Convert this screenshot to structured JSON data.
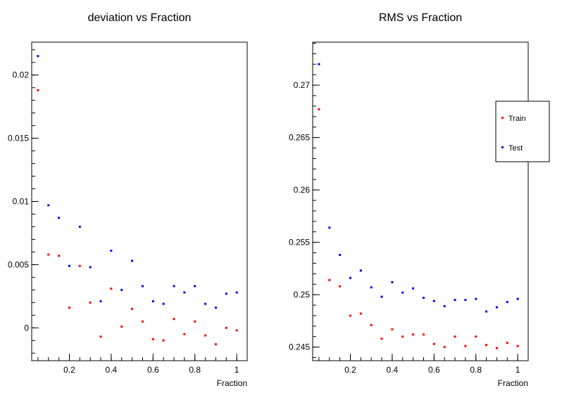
{
  "chart_data": [
    {
      "type": "scatter",
      "title": "deviation vs Fraction",
      "xlabel": "Fraction",
      "ylabel": "",
      "xlim": [
        0.02,
        1.05
      ],
      "ylim": [
        -0.0026,
        0.0226
      ],
      "xticks": [
        0.2,
        0.4,
        0.6,
        0.8,
        1
      ],
      "xtick_labels": [
        "0.2",
        "0.4",
        "0.6",
        "0.8",
        "1"
      ],
      "yticks": [
        0,
        0.005,
        0.01,
        0.015,
        0.02
      ],
      "ytick_labels": [
        "0",
        "0.005",
        "0.01",
        "0.015",
        "0.02"
      ],
      "grid": false,
      "legend": null,
      "x": [
        0.05,
        0.1,
        0.15,
        0.2,
        0.25,
        0.3,
        0.35,
        0.4,
        0.45,
        0.5,
        0.55,
        0.6,
        0.65,
        0.7,
        0.75,
        0.8,
        0.85,
        0.9,
        0.95,
        1.0
      ],
      "series": [
        {
          "name": "Train",
          "color": "#ff0000",
          "values": [
            0.0188,
            0.0058,
            0.0057,
            0.0016,
            0.0049,
            0.002,
            -0.0007,
            0.0031,
            0.0001,
            0.0015,
            0.0005,
            -0.0009,
            -0.001,
            0.0007,
            -0.0005,
            0.0005,
            -0.0006,
            -0.0013,
            0.0,
            -0.0002
          ]
        },
        {
          "name": "Test",
          "color": "#0000ff",
          "values": [
            0.0215,
            0.0097,
            0.0087,
            0.0049,
            0.008,
            0.0048,
            0.0021,
            0.0061,
            0.003,
            0.0053,
            0.0033,
            0.0021,
            0.0019,
            0.0033,
            0.0028,
            0.0033,
            0.0019,
            0.0016,
            0.0027,
            0.0028
          ]
        }
      ]
    },
    {
      "type": "scatter",
      "title": "RMS vs Fraction",
      "xlabel": "Fraction",
      "ylabel": "",
      "xlim": [
        0.02,
        1.05
      ],
      "ylim": [
        0.2437,
        0.2741
      ],
      "xticks": [
        0.2,
        0.4,
        0.6,
        0.8,
        1
      ],
      "xtick_labels": [
        "0.2",
        "0.4",
        "0.6",
        "0.8",
        "1"
      ],
      "yticks": [
        0.245,
        0.25,
        0.255,
        0.26,
        0.265,
        0.27
      ],
      "ytick_labels": [
        "0.245",
        "0.25",
        "0.255",
        "0.26",
        "0.265",
        "0.27"
      ],
      "grid": false,
      "legend": {
        "placement": "right",
        "entries": [
          "Train",
          "Test"
        ]
      },
      "x": [
        0.05,
        0.1,
        0.15,
        0.2,
        0.25,
        0.3,
        0.35,
        0.4,
        0.45,
        0.5,
        0.55,
        0.6,
        0.65,
        0.7,
        0.75,
        0.8,
        0.85,
        0.9,
        0.95,
        1.0
      ],
      "series": [
        {
          "name": "Train",
          "color": "#ff0000",
          "values": [
            0.2677,
            0.2514,
            0.2508,
            0.248,
            0.2482,
            0.2471,
            0.2458,
            0.2467,
            0.246,
            0.2462,
            0.2462,
            0.2453,
            0.245,
            0.246,
            0.2451,
            0.246,
            0.2452,
            0.2449,
            0.2454,
            0.2451
          ]
        },
        {
          "name": "Test",
          "color": "#0000ff",
          "values": [
            0.272,
            0.2564,
            0.2538,
            0.2516,
            0.2523,
            0.2507,
            0.2498,
            0.2512,
            0.2502,
            0.2506,
            0.2497,
            0.2494,
            0.2489,
            0.2495,
            0.2495,
            0.2496,
            0.2484,
            0.2488,
            0.2493,
            0.2496
          ]
        }
      ]
    }
  ]
}
